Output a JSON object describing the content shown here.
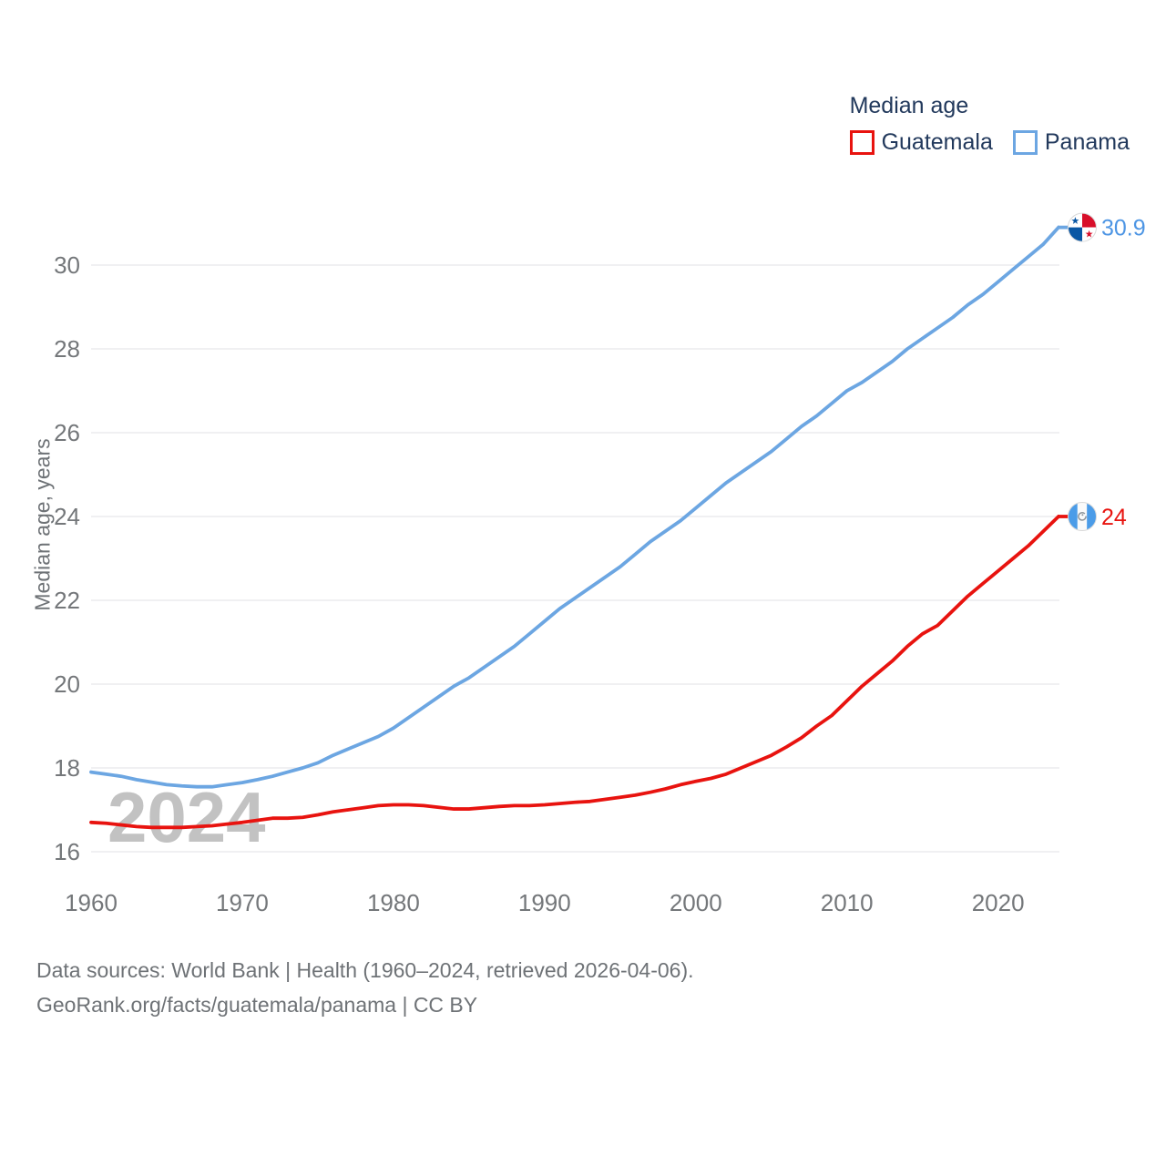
{
  "legend": {
    "title": "Median age",
    "items": [
      {
        "label": "Guatemala",
        "color": "#e8130f"
      },
      {
        "label": "Panama",
        "color": "#6ca6e2"
      }
    ]
  },
  "watermark": "2024",
  "footer": {
    "line1": "Data sources: World Bank | Health (1960–2024, retrieved 2026-04-06).",
    "line2": "GeoRank.org/facts/guatemala/panama | CC BY"
  },
  "chart_data": {
    "type": "line",
    "title": "Median age",
    "xlabel": "",
    "ylabel": "Median age, years",
    "x_range": [
      1960,
      2024
    ],
    "ylim": [
      15.8,
      31.3
    ],
    "yticks": [
      16,
      18,
      20,
      22,
      24,
      26,
      28,
      30
    ],
    "xticks": [
      1960,
      1970,
      1980,
      1990,
      2000,
      2010,
      2020
    ],
    "grid": "horizontal-only",
    "legend_position": "top-right",
    "x": [
      1960,
      1961,
      1962,
      1963,
      1964,
      1965,
      1966,
      1967,
      1968,
      1969,
      1970,
      1971,
      1972,
      1973,
      1974,
      1975,
      1976,
      1977,
      1978,
      1979,
      1980,
      1981,
      1982,
      1983,
      1984,
      1985,
      1986,
      1987,
      1988,
      1989,
      1990,
      1991,
      1992,
      1993,
      1994,
      1995,
      1996,
      1997,
      1998,
      1999,
      2000,
      2001,
      2002,
      2003,
      2004,
      2005,
      2006,
      2007,
      2008,
      2009,
      2010,
      2011,
      2012,
      2013,
      2014,
      2015,
      2016,
      2017,
      2018,
      2019,
      2020,
      2021,
      2022,
      2023,
      2024
    ],
    "series": [
      {
        "name": "Panama",
        "color": "#6ca6e2",
        "end_label": "30.9",
        "end_label_color": "#4d95e4",
        "flag_icon": "panama-flag-icon",
        "values": [
          17.9,
          17.85,
          17.8,
          17.72,
          17.66,
          17.6,
          17.57,
          17.55,
          17.55,
          17.6,
          17.65,
          17.72,
          17.8,
          17.9,
          18.0,
          18.12,
          18.3,
          18.45,
          18.6,
          18.75,
          18.95,
          19.2,
          19.45,
          19.7,
          19.95,
          20.15,
          20.4,
          20.65,
          20.9,
          21.2,
          21.5,
          21.8,
          22.05,
          22.3,
          22.55,
          22.8,
          23.1,
          23.4,
          23.65,
          23.9,
          24.2,
          24.5,
          24.8,
          25.05,
          25.3,
          25.55,
          25.85,
          26.15,
          26.4,
          26.7,
          27.0,
          27.2,
          27.45,
          27.7,
          28.0,
          28.25,
          28.5,
          28.75,
          29.05,
          29.3,
          29.6,
          29.9,
          30.2,
          30.5,
          30.9
        ]
      },
      {
        "name": "Guatemala",
        "color": "#e8130f",
        "end_label": "24",
        "end_label_color": "#e8130f",
        "flag_icon": "guatemala-flag-icon",
        "values": [
          16.7,
          16.68,
          16.64,
          16.6,
          16.58,
          16.58,
          16.58,
          16.6,
          16.62,
          16.66,
          16.7,
          16.75,
          16.8,
          16.8,
          16.82,
          16.88,
          16.95,
          17.0,
          17.05,
          17.1,
          17.12,
          17.12,
          17.1,
          17.06,
          17.02,
          17.02,
          17.05,
          17.08,
          17.1,
          17.1,
          17.12,
          17.15,
          17.18,
          17.2,
          17.25,
          17.3,
          17.35,
          17.42,
          17.5,
          17.6,
          17.68,
          17.75,
          17.85,
          18.0,
          18.15,
          18.3,
          18.5,
          18.72,
          19.0,
          19.25,
          19.6,
          19.95,
          20.25,
          20.55,
          20.9,
          21.2,
          21.4,
          21.75,
          22.1,
          22.4,
          22.7,
          23.0,
          23.3,
          23.65,
          24.0
        ]
      }
    ]
  }
}
